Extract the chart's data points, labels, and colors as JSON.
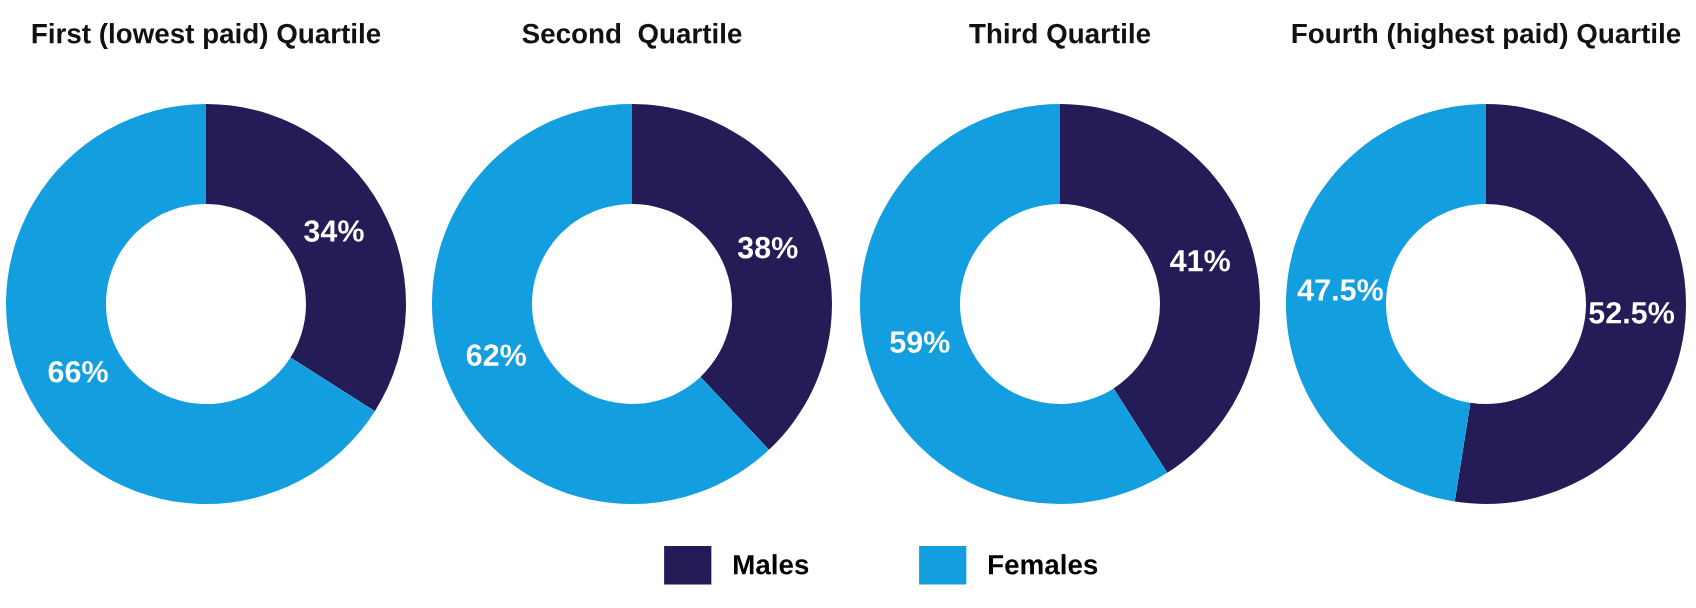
{
  "chart_data": [
    {
      "type": "donut",
      "title": "First (lowest paid) Quartile",
      "categories": [
        "Males",
        "Females"
      ],
      "values": [
        34,
        66
      ],
      "colors": [
        "#231c57",
        "#139fdf"
      ],
      "value_labels": [
        "34%",
        "66%"
      ],
      "legend": "bottom"
    },
    {
      "type": "donut",
      "title": "Second  Quartile",
      "categories": [
        null,
        null
      ],
      "values": [
        38,
        62
      ],
      "colors": [
        "#231c57",
        "#139fdf"
      ],
      "value_labels": [
        "38%",
        "62%"
      ]
    },
    {
      "type": "donut",
      "title": "Third Quartile",
      "categories": [
        null,
        null
      ],
      "values": [
        41,
        59
      ],
      "colors": [
        "#231c57",
        "#139fdf"
      ],
      "value_labels": [
        "41%",
        "59%"
      ]
    },
    {
      "type": "donut",
      "title": "Fourth (highest paid) Quartile",
      "categories": [
        null,
        null
      ],
      "values": [
        52.5,
        47.5
      ],
      "colors": [
        "#231c57",
        "#139fdf"
      ],
      "value_labels": [
        "52.5%",
        "47.5%"
      ]
    }
  ]
}
